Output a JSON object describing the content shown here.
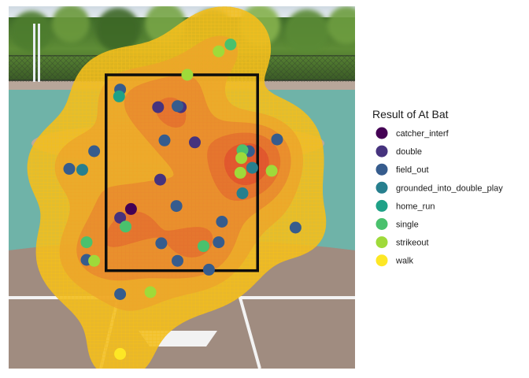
{
  "chart_data": {
    "type": "scatter",
    "title": "",
    "xlabel": "",
    "ylabel": "",
    "xlim": [
      -1.6,
      1.6
    ],
    "ylim": [
      0.5,
      4.2
    ],
    "grid": false,
    "background": "baseball-field-photo",
    "strike_zone": {
      "x": [
        -0.7,
        0.7
      ],
      "y": [
        1.5,
        3.5
      ]
    },
    "legend": {
      "title": "Result of At Bat",
      "position": "right",
      "entries": [
        {
          "name": "catcher_interf",
          "color": "#440154"
        },
        {
          "name": "double",
          "color": "#46337E"
        },
        {
          "name": "field_out",
          "color": "#365C8D"
        },
        {
          "name": "grounded_into_double_play",
          "color": "#277F8E"
        },
        {
          "name": "home_run",
          "color": "#1FA187"
        },
        {
          "name": "single",
          "color": "#4AC16D"
        },
        {
          "name": "strikeout",
          "color": "#9FDA3A"
        },
        {
          "name": "walk",
          "color": "#FDE725"
        }
      ]
    },
    "density_levels": [
      {
        "color": "#F2BE1E",
        "opacity": 0.88
      },
      {
        "color": "#EDA52A",
        "opacity": 0.78
      },
      {
        "color": "#E98A2E",
        "opacity": 0.8
      },
      {
        "color": "#E4702E",
        "opacity": 0.82
      },
      {
        "color": "#E0552E",
        "opacity": 0.85
      }
    ],
    "points": [
      {
        "x": -0.47,
        "y": 2.13,
        "result": "catcher_interf"
      },
      {
        "x": -0.22,
        "y": 3.17,
        "result": "double"
      },
      {
        "x": -0.01,
        "y": 3.17,
        "result": "double"
      },
      {
        "x": 0.12,
        "y": 2.81,
        "result": "double"
      },
      {
        "x": -0.2,
        "y": 2.43,
        "result": "double"
      },
      {
        "x": -0.57,
        "y": 2.04,
        "result": "double"
      },
      {
        "x": -0.57,
        "y": 3.35,
        "result": "field_out"
      },
      {
        "x": -0.04,
        "y": 3.18,
        "result": "field_out"
      },
      {
        "x": -0.16,
        "y": 2.83,
        "result": "field_out"
      },
      {
        "x": -0.81,
        "y": 2.72,
        "result": "field_out"
      },
      {
        "x": -1.04,
        "y": 2.54,
        "result": "field_out"
      },
      {
        "x": 0.62,
        "y": 2.72,
        "result": "field_out"
      },
      {
        "x": 0.88,
        "y": 2.84,
        "result": "field_out"
      },
      {
        "x": -0.05,
        "y": 2.16,
        "result": "field_out"
      },
      {
        "x": 0.37,
        "y": 2.0,
        "result": "field_out"
      },
      {
        "x": 0.34,
        "y": 1.79,
        "result": "field_out"
      },
      {
        "x": -0.19,
        "y": 1.78,
        "result": "field_out"
      },
      {
        "x": -0.88,
        "y": 1.61,
        "result": "field_out"
      },
      {
        "x": -0.04,
        "y": 1.6,
        "result": "field_out"
      },
      {
        "x": 0.25,
        "y": 1.51,
        "result": "field_out"
      },
      {
        "x": -0.57,
        "y": 1.26,
        "result": "field_out"
      },
      {
        "x": 1.05,
        "y": 1.94,
        "result": "field_out"
      },
      {
        "x": -0.92,
        "y": 2.53,
        "result": "grounded_into_double_play"
      },
      {
        "x": 0.65,
        "y": 2.55,
        "result": "grounded_into_double_play"
      },
      {
        "x": 0.56,
        "y": 2.29,
        "result": "grounded_into_double_play"
      },
      {
        "x": -0.58,
        "y": 3.28,
        "result": "home_run"
      },
      {
        "x": 0.45,
        "y": 3.81,
        "result": "single"
      },
      {
        "x": -0.52,
        "y": 1.95,
        "result": "single"
      },
      {
        "x": -0.88,
        "y": 1.79,
        "result": "single"
      },
      {
        "x": 0.56,
        "y": 2.73,
        "result": "single"
      },
      {
        "x": 0.2,
        "y": 1.75,
        "result": "single"
      },
      {
        "x": 0.34,
        "y": 3.74,
        "result": "strikeout"
      },
      {
        "x": 0.05,
        "y": 3.5,
        "result": "strikeout"
      },
      {
        "x": 0.55,
        "y": 2.65,
        "result": "strikeout"
      },
      {
        "x": 0.83,
        "y": 2.52,
        "result": "strikeout"
      },
      {
        "x": 0.54,
        "y": 2.5,
        "result": "strikeout"
      },
      {
        "x": -0.81,
        "y": 1.6,
        "result": "strikeout"
      },
      {
        "x": -0.29,
        "y": 1.28,
        "result": "strikeout"
      },
      {
        "x": -0.57,
        "y": 0.65,
        "result": "walk"
      }
    ]
  }
}
